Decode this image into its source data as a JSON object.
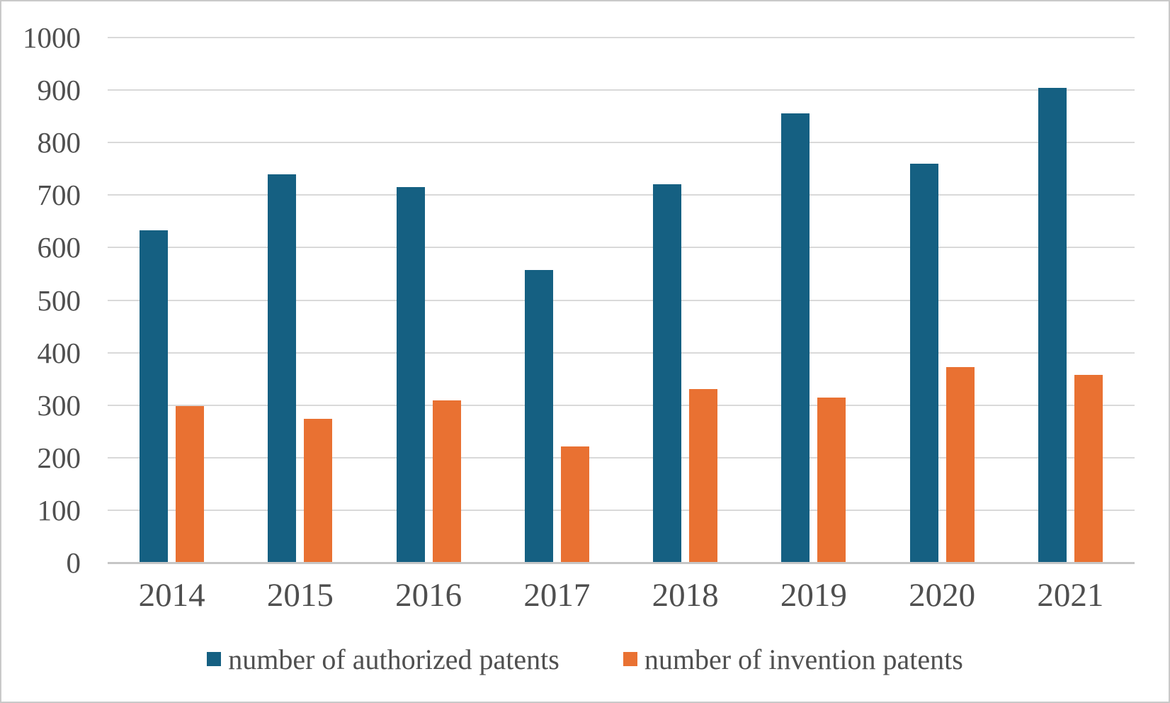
{
  "chart_data": {
    "type": "bar",
    "categories": [
      "2014",
      "2015",
      "2016",
      "2017",
      "2018",
      "2019",
      "2020",
      "2021"
    ],
    "series": [
      {
        "id": "authorized",
        "name": "number of authorized patents",
        "color": "#156082",
        "values": [
          633,
          740,
          715,
          558,
          720,
          855,
          760,
          904
        ]
      },
      {
        "id": "invention",
        "name": "number of invention patents",
        "color": "#E97132",
        "values": [
          298,
          274,
          309,
          221,
          331,
          314,
          373,
          357
        ]
      }
    ],
    "ylim": [
      0,
      1000
    ],
    "yticks": [
      0,
      100,
      200,
      300,
      400,
      500,
      600,
      700,
      800,
      900,
      1000
    ],
    "grid": "horizontal-lines",
    "legend_position": "bottom-center"
  },
  "colors": {
    "gridline": "#D9D9D9",
    "axis_line": "#C6C6C6",
    "tick_text": "#4F4F4F",
    "frame_border": "#C9C9C9",
    "background": "#FFFFFF"
  }
}
